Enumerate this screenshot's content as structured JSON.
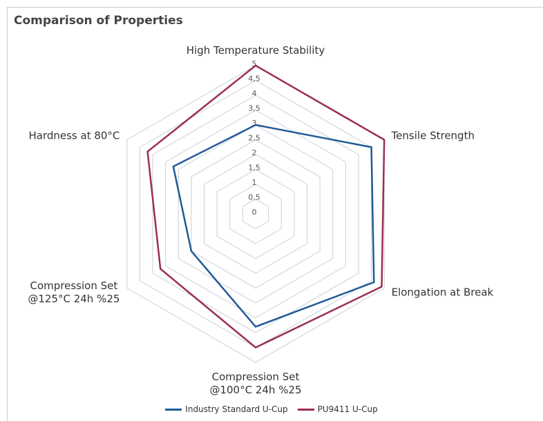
{
  "chart_data": {
    "type": "radar",
    "title": "Comparison of Properties",
    "categories": [
      "High Temperature Stability",
      "Tensile Strength",
      "Elongation at Break",
      "Compression Set\n@100°C 24h %25",
      "Compression Set\n@125°C 24h %25",
      "Hardness at 80°C"
    ],
    "series": [
      {
        "name": "Industry Standard U-Cup",
        "color": "#1f5a96",
        "values": [
          3,
          4.5,
          4.6,
          3.8,
          2.5,
          3.2
        ]
      },
      {
        "name": "PU9411 U-Cup",
        "color": "#9b2d55",
        "values": [
          5,
          5,
          4.9,
          4.5,
          3.7,
          4.2
        ]
      }
    ],
    "rlim": [
      0,
      5
    ],
    "rticks": [
      0,
      {
        "value": 0.5,
        "label": "0,5"
      },
      1,
      {
        "value": 1.5,
        "label": "1,5"
      },
      2,
      {
        "value": 2.5,
        "label": "2,5"
      },
      3,
      {
        "value": 3.5,
        "label": "3,5"
      },
      4,
      {
        "value": 4.5,
        "label": "4,5"
      },
      5
    ],
    "grid": true,
    "legend": "bottom"
  }
}
